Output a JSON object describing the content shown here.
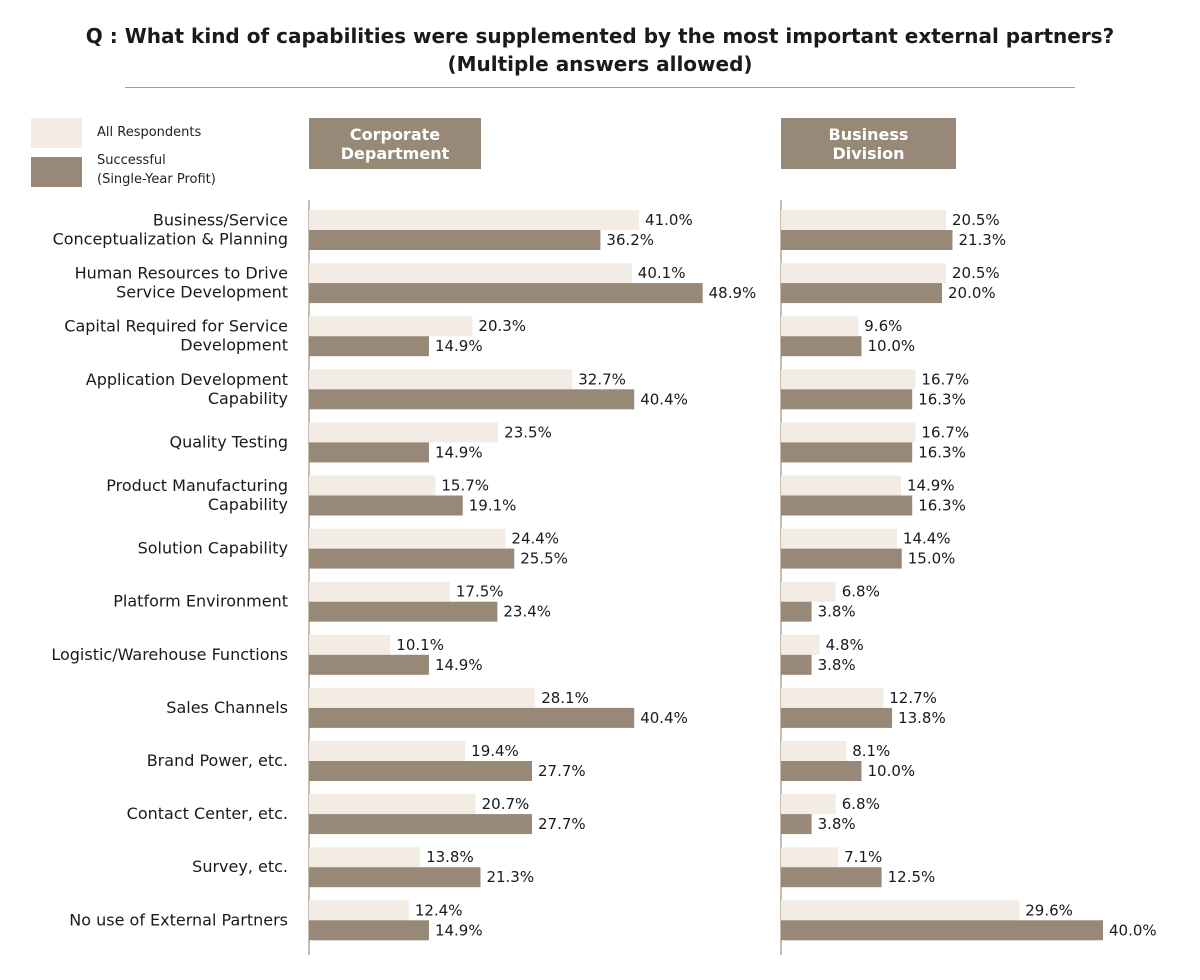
{
  "chart_data": {
    "type": "bar",
    "orientation": "horizontal",
    "title": [
      "Q : What kind of capabilities were supplemented by the most important external partners?",
      "(Multiple answers allowed)"
    ],
    "legend": {
      "placement": "top-left",
      "entries": [
        {
          "label": "All Respondents",
          "color": "#f3ece4"
        },
        {
          "label": "Successful",
          "label_line2": "(Single-Year Profit)",
          "color": "#988878"
        }
      ]
    },
    "categories": [
      [
        "Business/Service",
        "Conceptualization & Planning"
      ],
      [
        "Human Resources to Drive",
        "Service Development"
      ],
      [
        "Capital Required for Service",
        "Development"
      ],
      [
        "Application Development",
        "Capability"
      ],
      [
        "Quality Testing"
      ],
      [
        "Product Manufacturing",
        "Capability"
      ],
      [
        "Solution Capability"
      ],
      [
        "Platform Environment"
      ],
      [
        "Logistic/Warehouse Functions"
      ],
      [
        "Sales Channels"
      ],
      [
        "Brand Power, etc."
      ],
      [
        "Contact Center, etc."
      ],
      [
        "Survey, etc."
      ],
      [
        "No use of External Partners"
      ]
    ],
    "value_suffix": "%",
    "panels": [
      {
        "header": [
          "Corporate",
          "Department"
        ],
        "series": [
          {
            "name": "All Respondents",
            "values": [
              41.0,
              40.1,
              20.3,
              32.7,
              23.5,
              15.7,
              24.4,
              17.5,
              10.1,
              28.1,
              19.4,
              20.7,
              13.8,
              12.4
            ]
          },
          {
            "name": "Successful (Single-Year Profit)",
            "values": [
              36.2,
              48.9,
              14.9,
              40.4,
              14.9,
              19.1,
              25.5,
              23.4,
              14.9,
              40.4,
              27.7,
              27.7,
              21.3,
              14.9
            ]
          }
        ]
      },
      {
        "header": [
          "Business",
          "Division"
        ],
        "series": [
          {
            "name": "All Respondents",
            "values": [
              20.5,
              20.5,
              9.6,
              16.7,
              16.7,
              14.9,
              14.4,
              6.8,
              4.8,
              12.7,
              8.1,
              6.8,
              7.1,
              29.6
            ]
          },
          {
            "name": "Successful (Single-Year Profit)",
            "values": [
              21.3,
              20.0,
              10.0,
              16.3,
              16.3,
              16.3,
              15.0,
              3.8,
              3.8,
              13.8,
              10.0,
              3.8,
              12.5,
              40.0
            ]
          }
        ]
      }
    ],
    "grid": false
  }
}
